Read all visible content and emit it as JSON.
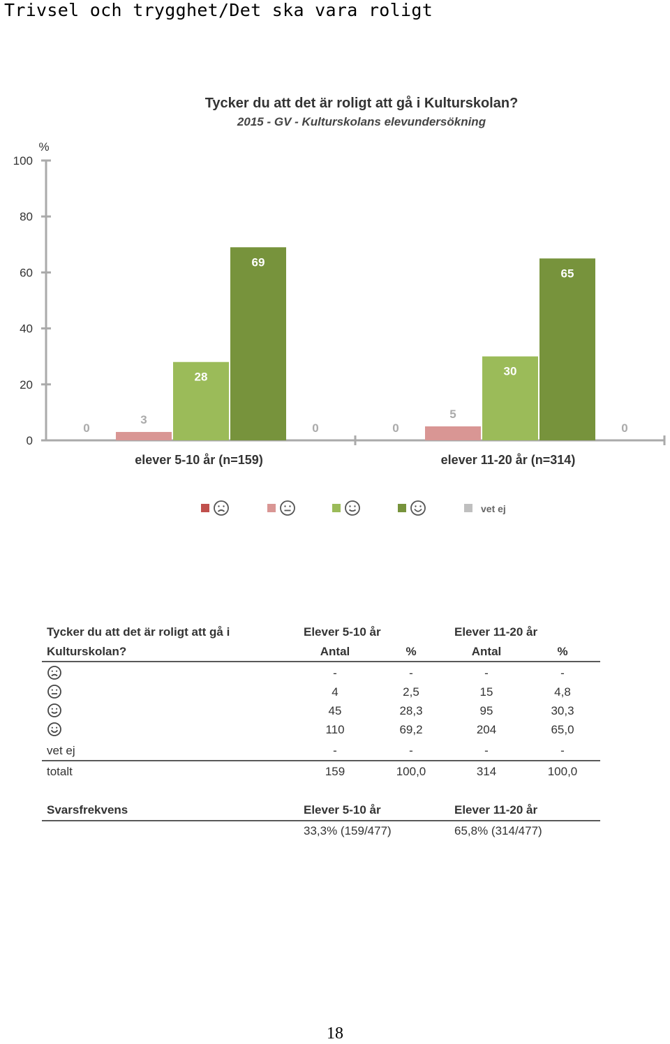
{
  "page": {
    "heading": "Trivsel och trygghet/Det ska vara roligt",
    "page_number": "18"
  },
  "chart_data": {
    "type": "bar",
    "title": "Tycker du att det är roligt att gå i Kulturskolan?",
    "subtitle": "2015 - GV - Kulturskolans elevundersökning",
    "ylabel": "%",
    "ylim": [
      0,
      100
    ],
    "yticks": [
      0,
      20,
      40,
      60,
      80,
      100
    ],
    "categories": [
      "elever 5-10 år (n=159)",
      "elever 11-20 år (n=314)"
    ],
    "series": [
      {
        "name": "",
        "icon": "sad-face-icon",
        "color": "#c0504d",
        "values": [
          0,
          0
        ]
      },
      {
        "name": "",
        "icon": "neutral-face-icon",
        "color": "#d99694",
        "values": [
          3,
          5
        ]
      },
      {
        "name": "",
        "icon": "smile-face-icon",
        "color": "#9bbb59",
        "values": [
          28,
          30
        ]
      },
      {
        "name": "",
        "icon": "happy-face-icon",
        "color": "#77933c",
        "values": [
          69,
          65
        ]
      },
      {
        "name": "vet ej",
        "icon": "",
        "color": "#bfbfbf",
        "values": [
          0,
          0
        ]
      }
    ],
    "legend_position": "bottom"
  },
  "table": {
    "question_line1": "Tycker du att det är roligt att gå i",
    "question_line2": "Kulturskolan?",
    "group1": "Elever 5-10 år",
    "group2": "Elever 11-20 år",
    "col_antal": "Antal",
    "col_pct": "%",
    "rows": [
      {
        "icon": "sad-face-icon",
        "label": "",
        "a1": "-",
        "p1": "-",
        "a2": "-",
        "p2": "-"
      },
      {
        "icon": "neutral-face-icon",
        "label": "",
        "a1": "4",
        "p1": "2,5",
        "a2": "15",
        "p2": "4,8"
      },
      {
        "icon": "smile-face-icon",
        "label": "",
        "a1": "45",
        "p1": "28,3",
        "a2": "95",
        "p2": "30,3"
      },
      {
        "icon": "happy-face-icon",
        "label": "",
        "a1": "110",
        "p1": "69,2",
        "a2": "204",
        "p2": "65,0"
      },
      {
        "icon": "",
        "label": "vet ej",
        "a1": "-",
        "p1": "-",
        "a2": "-",
        "p2": "-"
      }
    ],
    "total": {
      "label": "totalt",
      "a1": "159",
      "p1": "100,0",
      "a2": "314",
      "p2": "100,0"
    }
  },
  "response_rate": {
    "label": "Svarsfrekvens",
    "group1": "Elever 5-10 år",
    "group2": "Elever 11-20 år",
    "value1": "33,3% (159/477)",
    "value2": "65,8% (314/477)"
  }
}
